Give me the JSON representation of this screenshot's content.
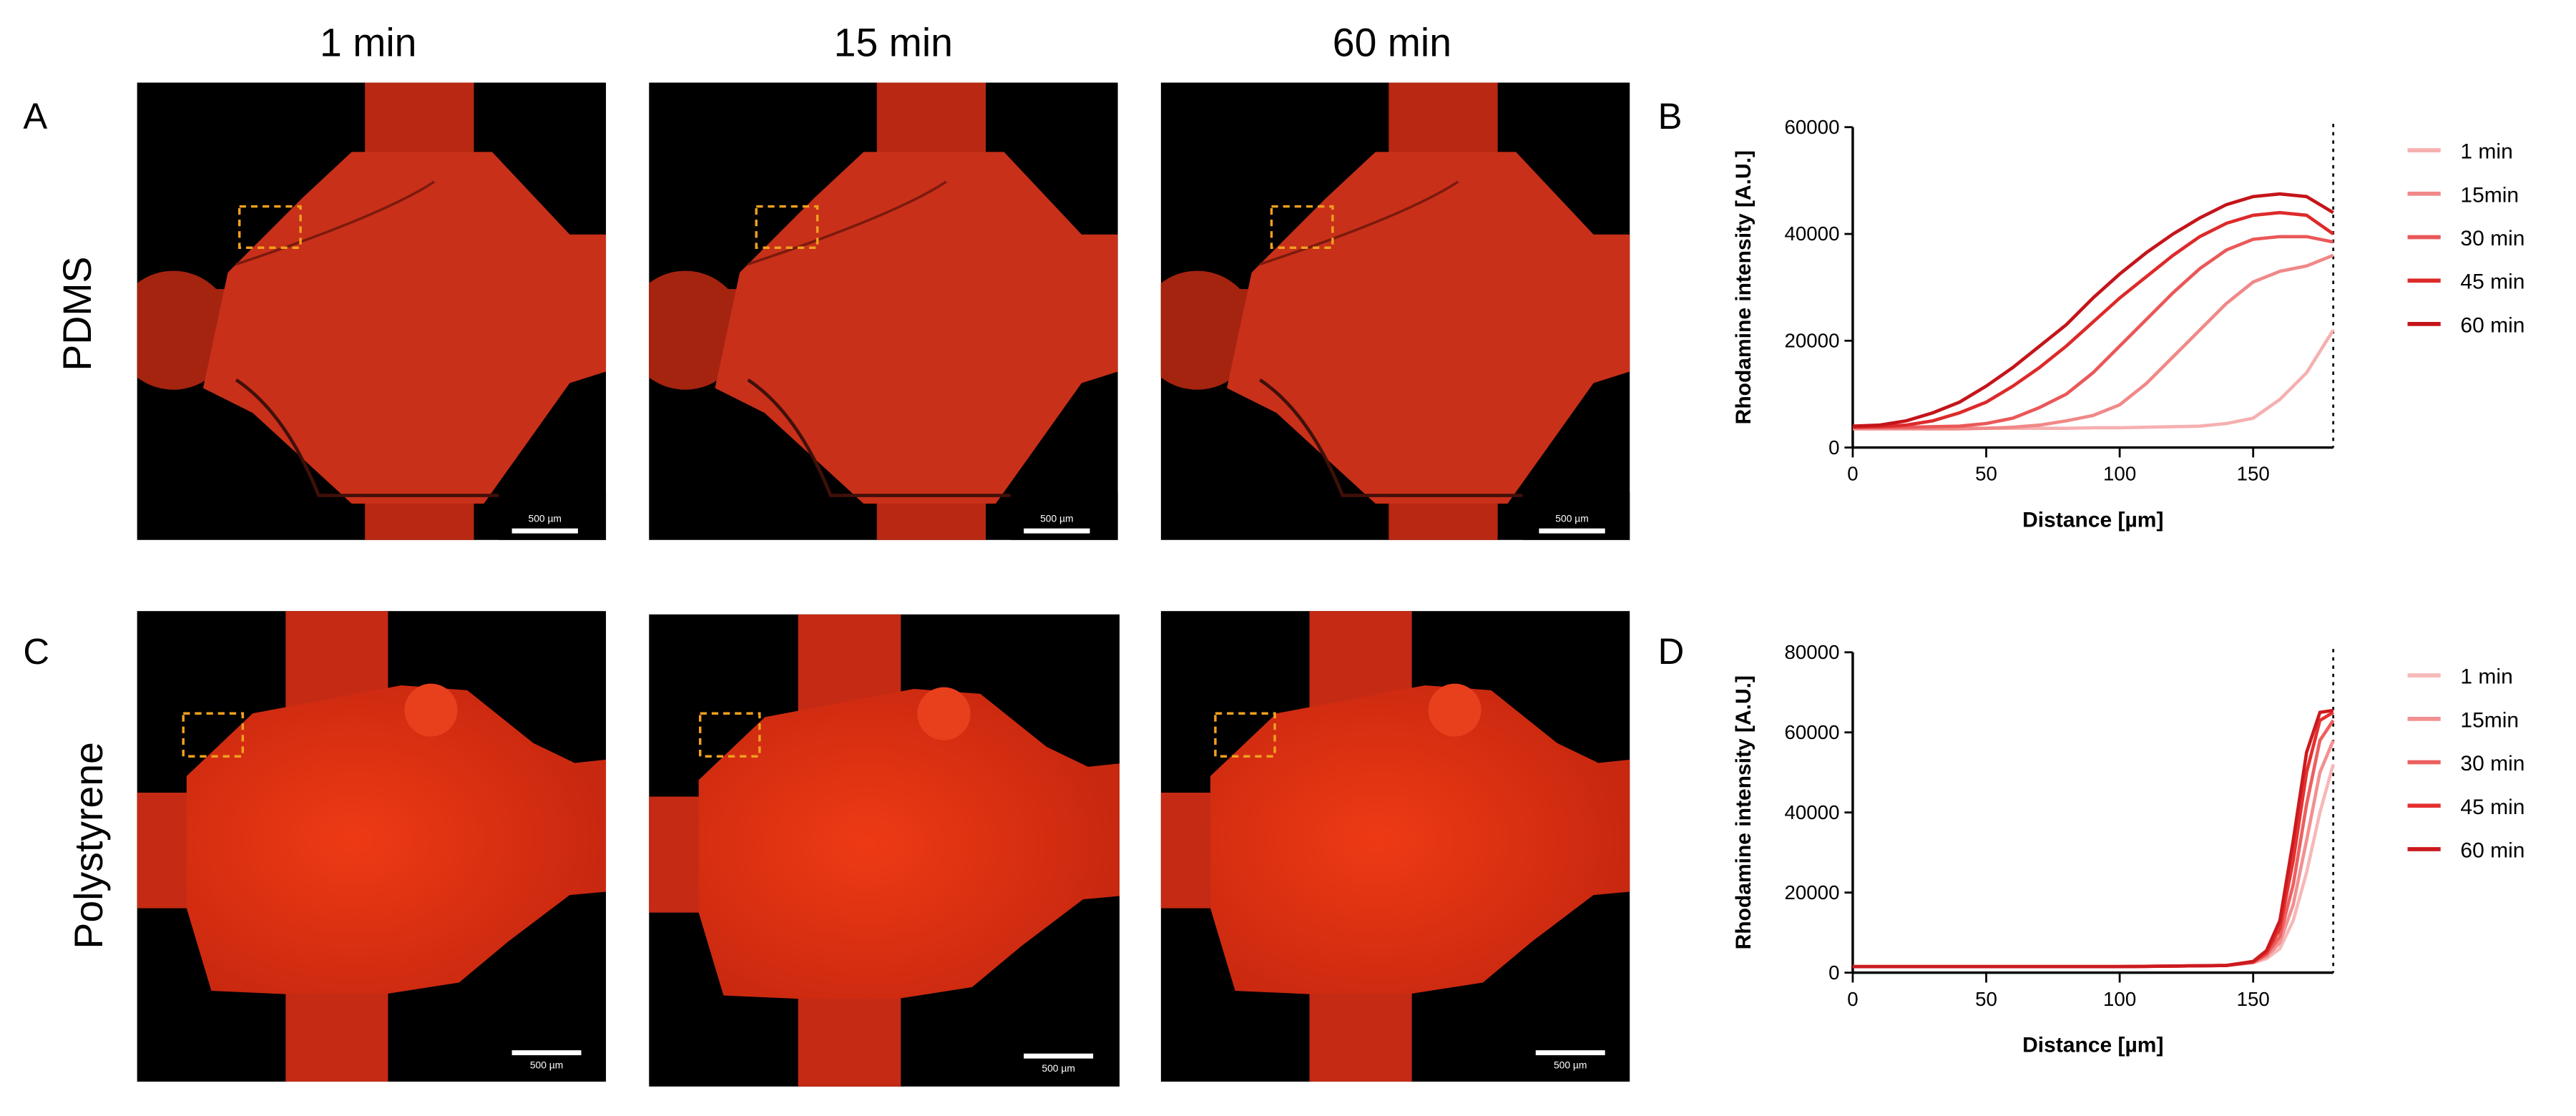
{
  "column_headers": [
    "1 min",
    "15 min",
    "60 min"
  ],
  "row_labels": [
    "PDMS",
    "Polystyrene"
  ],
  "panel_labels": [
    "A",
    "B",
    "C",
    "D"
  ],
  "scale_bar_labels": [
    "500 µm",
    "500 µm",
    "500 µm",
    "500 µm",
    "500 µm",
    "500 µm"
  ],
  "chart_data": [
    {
      "type": "line",
      "xlabel": "Distance [µm]",
      "ylabel": "Rhodamine intensity [A.U.]",
      "xlim": [
        0,
        180
      ],
      "xticks": [
        0,
        50,
        100,
        150
      ],
      "ylim": [
        0,
        60000
      ],
      "yticks": [
        0,
        20000,
        40000,
        60000
      ],
      "reference_line": 180,
      "x": [
        0,
        10,
        20,
        30,
        40,
        50,
        60,
        70,
        80,
        90,
        100,
        110,
        120,
        130,
        140,
        150,
        160,
        170,
        180
      ],
      "series": [
        {
          "name": "1 min",
          "color": "#f5b0b0",
          "values": [
            4000,
            3900,
            3800,
            3700,
            3700,
            3600,
            3600,
            3600,
            3600,
            3700,
            3700,
            3800,
            3900,
            4000,
            4500,
            5500,
            9000,
            14000,
            22000
          ]
        },
        {
          "name": "15min",
          "color": "#f08888",
          "values": [
            3500,
            3500,
            3500,
            3500,
            3500,
            3600,
            3800,
            4200,
            5000,
            6000,
            8000,
            12000,
            17000,
            22000,
            27000,
            31000,
            33000,
            34000,
            36000
          ]
        },
        {
          "name": "30 min",
          "color": "#ea5858",
          "values": [
            3800,
            3800,
            3800,
            3900,
            4000,
            4500,
            5500,
            7500,
            10000,
            14000,
            19000,
            24000,
            29000,
            33500,
            37000,
            39000,
            39500,
            39500,
            38500
          ]
        },
        {
          "name": "45 min",
          "color": "#dd2a2a",
          "values": [
            3800,
            3900,
            4200,
            5000,
            6500,
            8500,
            11500,
            15000,
            19000,
            23500,
            28000,
            32000,
            36000,
            39500,
            42000,
            43500,
            44000,
            43500,
            40000
          ]
        },
        {
          "name": "60 min",
          "color": "#c4141a",
          "values": [
            4000,
            4200,
            5000,
            6500,
            8500,
            11500,
            15000,
            19000,
            23000,
            28000,
            32500,
            36500,
            40000,
            43000,
            45500,
            47000,
            47500,
            47000,
            44000
          ]
        }
      ]
    },
    {
      "type": "line",
      "xlabel": "Distance [µm]",
      "ylabel": "Rhodamine intensity [A.U.]",
      "xlim": [
        0,
        180
      ],
      "xticks": [
        0,
        50,
        100,
        150
      ],
      "ylim": [
        0,
        80000
      ],
      "yticks": [
        0,
        20000,
        40000,
        60000,
        80000
      ],
      "reference_line": 180,
      "x": [
        0,
        50,
        100,
        140,
        150,
        155,
        160,
        165,
        170,
        175,
        180
      ],
      "series": [
        {
          "name": "1 min",
          "color": "#f7b8b8",
          "values": [
            1500,
            1500,
            1500,
            1800,
            2500,
            3500,
            6000,
            13000,
            25000,
            40000,
            52000
          ]
        },
        {
          "name": "15min",
          "color": "#f29090",
          "values": [
            1500,
            1500,
            1500,
            1800,
            2500,
            4000,
            7500,
            17000,
            33000,
            50000,
            58000
          ]
        },
        {
          "name": "30 min",
          "color": "#ec6060",
          "values": [
            1500,
            1500,
            1500,
            1800,
            2600,
            4500,
            9000,
            22000,
            42000,
            58000,
            63000
          ]
        },
        {
          "name": "45 min",
          "color": "#e43030",
          "values": [
            1500,
            1500,
            1500,
            1800,
            2700,
            5000,
            11000,
            28000,
            50000,
            63000,
            65000
          ]
        },
        {
          "name": "60 min",
          "color": "#cc1a1e",
          "values": [
            1500,
            1500,
            1500,
            1800,
            2800,
            5500,
            13000,
            33000,
            55000,
            65000,
            65500
          ]
        }
      ]
    }
  ]
}
